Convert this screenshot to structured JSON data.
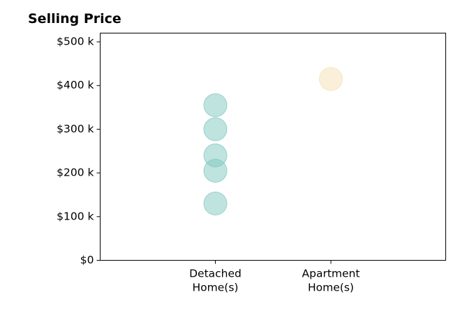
{
  "chart_data": {
    "type": "scatter",
    "title": "Selling Price",
    "xlabel": "",
    "ylabel": "",
    "categories": [
      "Detached\nHome(s)",
      "Apartment\nHome(s)"
    ],
    "ylim": [
      0,
      520000
    ],
    "yticks": [
      0,
      100000,
      200000,
      300000,
      400000,
      500000
    ],
    "ytick_labels": [
      "$0",
      "$100 k",
      "$200 k",
      "$300 k",
      "$400 k",
      "$500 k"
    ],
    "grid": false,
    "legend": "none",
    "series": [
      {
        "category": "Detached\nHome(s)",
        "color": "#7fc7c0",
        "values": [
          130000,
          205000,
          240000,
          300000,
          355000
        ]
      },
      {
        "category": "Apartment\nHome(s)",
        "color": "#f5e0b3",
        "values": [
          415000
        ]
      }
    ]
  }
}
